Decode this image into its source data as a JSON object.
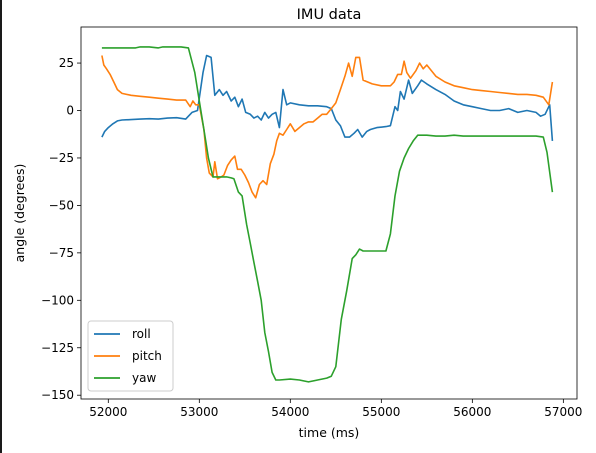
{
  "chart_data": {
    "type": "line",
    "title": "IMU data",
    "xlabel": "time (ms)",
    "ylabel": "angle (degrees)",
    "xlim": [
      51700,
      57150
    ],
    "ylim": [
      -152,
      44
    ],
    "xticks": [
      52000,
      53000,
      54000,
      55000,
      56000,
      57000
    ],
    "yticks": [
      25,
      0,
      -25,
      -50,
      -75,
      -100,
      -125,
      -150
    ],
    "grid": false,
    "legend_position": "lower-left",
    "series": [
      {
        "name": "roll",
        "color": "#1f77b4",
        "points": [
          [
            51930,
            -14
          ],
          [
            51960,
            -11
          ],
          [
            52000,
            -9
          ],
          [
            52050,
            -7
          ],
          [
            52100,
            -5.5
          ],
          [
            52150,
            -5
          ],
          [
            52250,
            -4.8
          ],
          [
            52350,
            -4.5
          ],
          [
            52450,
            -4.3
          ],
          [
            52550,
            -4.5
          ],
          [
            52650,
            -4
          ],
          [
            52750,
            -3.8
          ],
          [
            52850,
            -4.5
          ],
          [
            52920,
            -1
          ],
          [
            52980,
            0
          ],
          [
            53040,
            20
          ],
          [
            53080,
            29
          ],
          [
            53130,
            28
          ],
          [
            53170,
            8
          ],
          [
            53220,
            11
          ],
          [
            53260,
            8
          ],
          [
            53300,
            10
          ],
          [
            53350,
            5
          ],
          [
            53390,
            7
          ],
          [
            53430,
            2
          ],
          [
            53470,
            6
          ],
          [
            53510,
            -1
          ],
          [
            53560,
            -2
          ],
          [
            53600,
            -4
          ],
          [
            53640,
            -3
          ],
          [
            53680,
            -5
          ],
          [
            53720,
            -1
          ],
          [
            53760,
            -4
          ],
          [
            53800,
            -2
          ],
          [
            53840,
            -1
          ],
          [
            53880,
            -9
          ],
          [
            53920,
            11
          ],
          [
            53960,
            3
          ],
          [
            54000,
            4
          ],
          [
            54100,
            3
          ],
          [
            54200,
            2.5
          ],
          [
            54300,
            2.5
          ],
          [
            54400,
            2
          ],
          [
            54450,
            1
          ],
          [
            54500,
            -5
          ],
          [
            54550,
            -8
          ],
          [
            54600,
            -14
          ],
          [
            54650,
            -14
          ],
          [
            54700,
            -12
          ],
          [
            54740,
            -10
          ],
          [
            54790,
            -14
          ],
          [
            54840,
            -11
          ],
          [
            54880,
            -10
          ],
          [
            54950,
            -9
          ],
          [
            55050,
            -8.5
          ],
          [
            55100,
            -8
          ],
          [
            55150,
            2
          ],
          [
            55180,
            0
          ],
          [
            55210,
            10
          ],
          [
            55250,
            6
          ],
          [
            55300,
            16
          ],
          [
            55340,
            9
          ],
          [
            55400,
            13
          ],
          [
            55440,
            16
          ],
          [
            55500,
            14
          ],
          [
            55600,
            11
          ],
          [
            55700,
            8.5
          ],
          [
            55800,
            5
          ],
          [
            55900,
            3
          ],
          [
            56000,
            2
          ],
          [
            56100,
            1
          ],
          [
            56200,
            0
          ],
          [
            56300,
            0
          ],
          [
            56400,
            1
          ],
          [
            56500,
            -1
          ],
          [
            56600,
            0
          ],
          [
            56700,
            -1
          ],
          [
            56750,
            -3
          ],
          [
            56800,
            -2
          ],
          [
            56850,
            3
          ],
          [
            56880,
            -16
          ]
        ]
      },
      {
        "name": "pitch",
        "color": "#ff7f0e",
        "points": [
          [
            51930,
            29
          ],
          [
            51950,
            24
          ],
          [
            51980,
            22
          ],
          [
            52020,
            19
          ],
          [
            52060,
            15
          ],
          [
            52100,
            11
          ],
          [
            52150,
            9
          ],
          [
            52250,
            8
          ],
          [
            52350,
            7.5
          ],
          [
            52450,
            7
          ],
          [
            52550,
            6.5
          ],
          [
            52650,
            6
          ],
          [
            52750,
            5.5
          ],
          [
            52850,
            5.5
          ],
          [
            52900,
            2
          ],
          [
            52930,
            5
          ],
          [
            52960,
            3
          ],
          [
            53000,
            3
          ],
          [
            53050,
            -10
          ],
          [
            53080,
            -25
          ],
          [
            53110,
            -33
          ],
          [
            53150,
            -35
          ],
          [
            53170,
            -27
          ],
          [
            53200,
            -36
          ],
          [
            53240,
            -35
          ],
          [
            53270,
            -34
          ],
          [
            53310,
            -29
          ],
          [
            53350,
            -26
          ],
          [
            53390,
            -24
          ],
          [
            53420,
            -31
          ],
          [
            53460,
            -31
          ],
          [
            53500,
            -34
          ],
          [
            53540,
            -38
          ],
          [
            53580,
            -43
          ],
          [
            53620,
            -46
          ],
          [
            53660,
            -39
          ],
          [
            53700,
            -37
          ],
          [
            53740,
            -39
          ],
          [
            53780,
            -28
          ],
          [
            53820,
            -23
          ],
          [
            53850,
            -16
          ],
          [
            53880,
            -12
          ],
          [
            53920,
            -13
          ],
          [
            53960,
            -10
          ],
          [
            54000,
            -7
          ],
          [
            54050,
            -11
          ],
          [
            54100,
            -9
          ],
          [
            54150,
            -7
          ],
          [
            54200,
            -6
          ],
          [
            54250,
            -6
          ],
          [
            54300,
            -4
          ],
          [
            54350,
            -2
          ],
          [
            54400,
            -2
          ],
          [
            54450,
            1
          ],
          [
            54500,
            4
          ],
          [
            54550,
            11
          ],
          [
            54600,
            18
          ],
          [
            54640,
            25
          ],
          [
            54680,
            18
          ],
          [
            54720,
            28
          ],
          [
            54760,
            28
          ],
          [
            54800,
            16
          ],
          [
            54850,
            15
          ],
          [
            54900,
            14
          ],
          [
            55000,
            13
          ],
          [
            55100,
            13
          ],
          [
            55140,
            15
          ],
          [
            55180,
            19
          ],
          [
            55220,
            19
          ],
          [
            55250,
            26
          ],
          [
            55280,
            20
          ],
          [
            55320,
            17
          ],
          [
            55380,
            21
          ],
          [
            55420,
            25
          ],
          [
            55460,
            22
          ],
          [
            55500,
            24
          ],
          [
            55600,
            18
          ],
          [
            55700,
            15
          ],
          [
            55800,
            13
          ],
          [
            55900,
            12
          ],
          [
            56000,
            11
          ],
          [
            56100,
            10.5
          ],
          [
            56200,
            10
          ],
          [
            56300,
            9.5
          ],
          [
            56400,
            9
          ],
          [
            56500,
            8.5
          ],
          [
            56600,
            8.5
          ],
          [
            56700,
            8
          ],
          [
            56780,
            7
          ],
          [
            56840,
            3
          ],
          [
            56880,
            15
          ]
        ]
      },
      {
        "name": "yaw",
        "color": "#2ca02c",
        "points": [
          [
            51930,
            33
          ],
          [
            52000,
            33
          ],
          [
            52100,
            33
          ],
          [
            52200,
            33
          ],
          [
            52300,
            33
          ],
          [
            52350,
            33.5
          ],
          [
            52450,
            33.5
          ],
          [
            52550,
            33
          ],
          [
            52600,
            33.5
          ],
          [
            52700,
            33.5
          ],
          [
            52800,
            33.5
          ],
          [
            52880,
            33
          ],
          [
            52950,
            20
          ],
          [
            53000,
            5
          ],
          [
            53050,
            -10
          ],
          [
            53100,
            -25
          ],
          [
            53150,
            -35
          ],
          [
            53200,
            -35
          ],
          [
            53250,
            -35
          ],
          [
            53300,
            -35
          ],
          [
            53350,
            -35.5
          ],
          [
            53380,
            -36
          ],
          [
            53430,
            -43
          ],
          [
            53470,
            -45
          ],
          [
            53520,
            -60
          ],
          [
            53560,
            -70
          ],
          [
            53600,
            -80
          ],
          [
            53640,
            -90
          ],
          [
            53680,
            -100
          ],
          [
            53720,
            -117
          ],
          [
            53760,
            -127
          ],
          [
            53800,
            -138
          ],
          [
            53840,
            -142
          ],
          [
            53880,
            -142
          ],
          [
            54000,
            -141.5
          ],
          [
            54100,
            -142
          ],
          [
            54200,
            -143
          ],
          [
            54300,
            -142
          ],
          [
            54400,
            -141
          ],
          [
            54450,
            -140
          ],
          [
            54500,
            -135
          ],
          [
            54560,
            -110
          ],
          [
            54620,
            -95
          ],
          [
            54680,
            -78
          ],
          [
            54720,
            -76
          ],
          [
            54760,
            -73
          ],
          [
            54800,
            -74
          ],
          [
            54900,
            -74
          ],
          [
            55000,
            -74
          ],
          [
            55050,
            -74
          ],
          [
            55100,
            -65
          ],
          [
            55150,
            -45
          ],
          [
            55200,
            -32
          ],
          [
            55250,
            -25
          ],
          [
            55300,
            -20
          ],
          [
            55350,
            -16
          ],
          [
            55400,
            -13
          ],
          [
            55500,
            -13
          ],
          [
            55600,
            -13.5
          ],
          [
            55700,
            -13.5
          ],
          [
            55800,
            -13
          ],
          [
            55900,
            -13.5
          ],
          [
            56000,
            -13.5
          ],
          [
            56100,
            -13.5
          ],
          [
            56200,
            -13.5
          ],
          [
            56300,
            -13.5
          ],
          [
            56400,
            -13.5
          ],
          [
            56500,
            -13.5
          ],
          [
            56600,
            -13.5
          ],
          [
            56700,
            -13.5
          ],
          [
            56780,
            -14
          ],
          [
            56820,
            -22
          ],
          [
            56880,
            -43
          ]
        ]
      }
    ]
  }
}
